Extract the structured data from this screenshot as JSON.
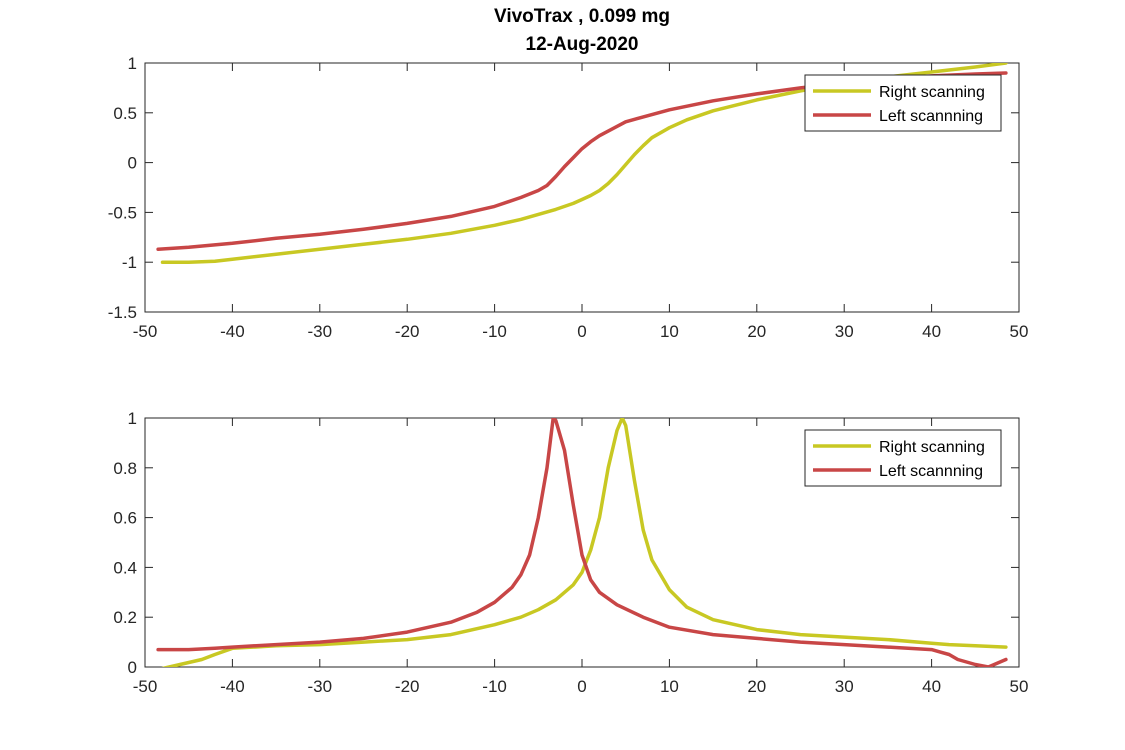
{
  "figure": {
    "title": "VivoTrax , 0.099 mg",
    "subtitle": "12-Aug-2020"
  },
  "colors": {
    "right": "#c8c823",
    "left": "#c84646",
    "axis": "#262626",
    "background": "#ffffff"
  },
  "chart_data": [
    {
      "type": "line",
      "title": "VivoTrax , 0.099 mg",
      "subtitle": "12-Aug-2020",
      "xlim": [
        -50,
        50
      ],
      "ylim": [
        -1.5,
        1
      ],
      "xticks": [
        -50,
        -40,
        -30,
        -20,
        -10,
        0,
        10,
        20,
        30,
        40,
        50
      ],
      "xtick_labels": [
        "-50",
        "-40",
        "-30",
        "-20",
        "-10",
        "0",
        "10",
        "20",
        "30",
        "40",
        "50"
      ],
      "yticks": [
        -1.5,
        -1,
        -0.5,
        0,
        0.5,
        1
      ],
      "ytick_labels": [
        "-1.5",
        "-1",
        "-0.5",
        "0",
        "0.5",
        "1"
      ],
      "grid": false,
      "legend": "top-right",
      "series": [
        {
          "name": "Right scanning",
          "color": "#c8c823",
          "x": [
            -48,
            -45,
            -42,
            -40,
            -35,
            -30,
            -25,
            -20,
            -15,
            -10,
            -7,
            -5,
            -3,
            -1,
            0,
            1,
            2,
            3,
            4,
            5,
            6,
            7,
            8,
            10,
            12,
            15,
            20,
            25,
            30,
            35,
            40,
            45,
            48.5
          ],
          "y": [
            -1.0,
            -1.0,
            -0.99,
            -0.97,
            -0.92,
            -0.87,
            -0.82,
            -0.77,
            -0.71,
            -0.63,
            -0.57,
            -0.52,
            -0.47,
            -0.41,
            -0.37,
            -0.33,
            -0.28,
            -0.21,
            -0.12,
            -0.02,
            0.08,
            0.17,
            0.25,
            0.35,
            0.43,
            0.52,
            0.63,
            0.72,
            0.8,
            0.86,
            0.91,
            0.96,
            1.0
          ]
        },
        {
          "name": "Left scannning",
          "color": "#c84646",
          "x": [
            -48.5,
            -45,
            -40,
            -35,
            -30,
            -25,
            -20,
            -15,
            -10,
            -7,
            -5,
            -4,
            -3,
            -2,
            -1,
            0,
            1,
            2,
            5,
            10,
            15,
            20,
            25,
            30,
            35,
            40,
            45,
            48.5
          ],
          "y": [
            -0.87,
            -0.85,
            -0.81,
            -0.76,
            -0.72,
            -0.67,
            -0.61,
            -0.54,
            -0.44,
            -0.35,
            -0.28,
            -0.23,
            -0.14,
            -0.04,
            0.05,
            0.14,
            0.21,
            0.27,
            0.41,
            0.53,
            0.62,
            0.69,
            0.75,
            0.8,
            0.84,
            0.87,
            0.89,
            0.9
          ]
        }
      ]
    },
    {
      "type": "line",
      "xlim": [
        -50,
        50
      ],
      "ylim": [
        0,
        1
      ],
      "xticks": [
        -50,
        -40,
        -30,
        -20,
        -10,
        0,
        10,
        20,
        30,
        40,
        50
      ],
      "xtick_labels": [
        "-50",
        "-40",
        "-30",
        "-20",
        "-10",
        "0",
        "10",
        "20",
        "30",
        "40",
        "50"
      ],
      "yticks": [
        0,
        0.2,
        0.4,
        0.6,
        0.8,
        1
      ],
      "ytick_labels": [
        "0",
        "0.2",
        "0.4",
        "0.6",
        "0.8",
        "1"
      ],
      "grid": false,
      "legend": "top-right",
      "series": [
        {
          "name": "Right scanning",
          "color": "#c8c823",
          "x": [
            -48.5,
            -46,
            -43.5,
            -42,
            -40,
            -35,
            -30,
            -25,
            -20,
            -15,
            -10,
            -7,
            -5,
            -3,
            -1,
            0,
            1,
            2,
            3,
            4,
            4.6,
            5,
            6,
            7,
            8,
            10,
            12,
            15,
            20,
            25,
            30,
            35,
            40,
            42,
            45,
            48.5
          ],
          "y": [
            -0.01,
            0.01,
            0.03,
            0.05,
            0.075,
            0.085,
            0.09,
            0.1,
            0.11,
            0.13,
            0.17,
            0.2,
            0.23,
            0.27,
            0.33,
            0.38,
            0.47,
            0.6,
            0.8,
            0.95,
            1.0,
            0.97,
            0.75,
            0.55,
            0.43,
            0.31,
            0.24,
            0.19,
            0.15,
            0.13,
            0.12,
            0.11,
            0.095,
            0.09,
            0.085,
            0.08
          ]
        },
        {
          "name": "Left scannning",
          "color": "#c84646",
          "x": [
            -48.5,
            -45,
            -42,
            -40,
            -35,
            -30,
            -25,
            -20,
            -15,
            -12,
            -10,
            -8,
            -7,
            -6,
            -5,
            -4,
            -3.3,
            -3,
            -2,
            -1,
            0,
            1,
            2,
            4,
            7,
            10,
            15,
            20,
            25,
            30,
            35,
            40,
            41,
            42,
            43,
            45,
            46.5,
            48.5
          ],
          "y": [
            0.07,
            0.07,
            0.075,
            0.08,
            0.09,
            0.1,
            0.115,
            0.14,
            0.18,
            0.22,
            0.26,
            0.32,
            0.37,
            0.45,
            0.6,
            0.8,
            1.0,
            0.99,
            0.87,
            0.65,
            0.45,
            0.35,
            0.3,
            0.25,
            0.2,
            0.16,
            0.13,
            0.115,
            0.1,
            0.09,
            0.08,
            0.07,
            0.06,
            0.05,
            0.03,
            0.01,
            0.0,
            0.03
          ]
        }
      ]
    }
  ]
}
